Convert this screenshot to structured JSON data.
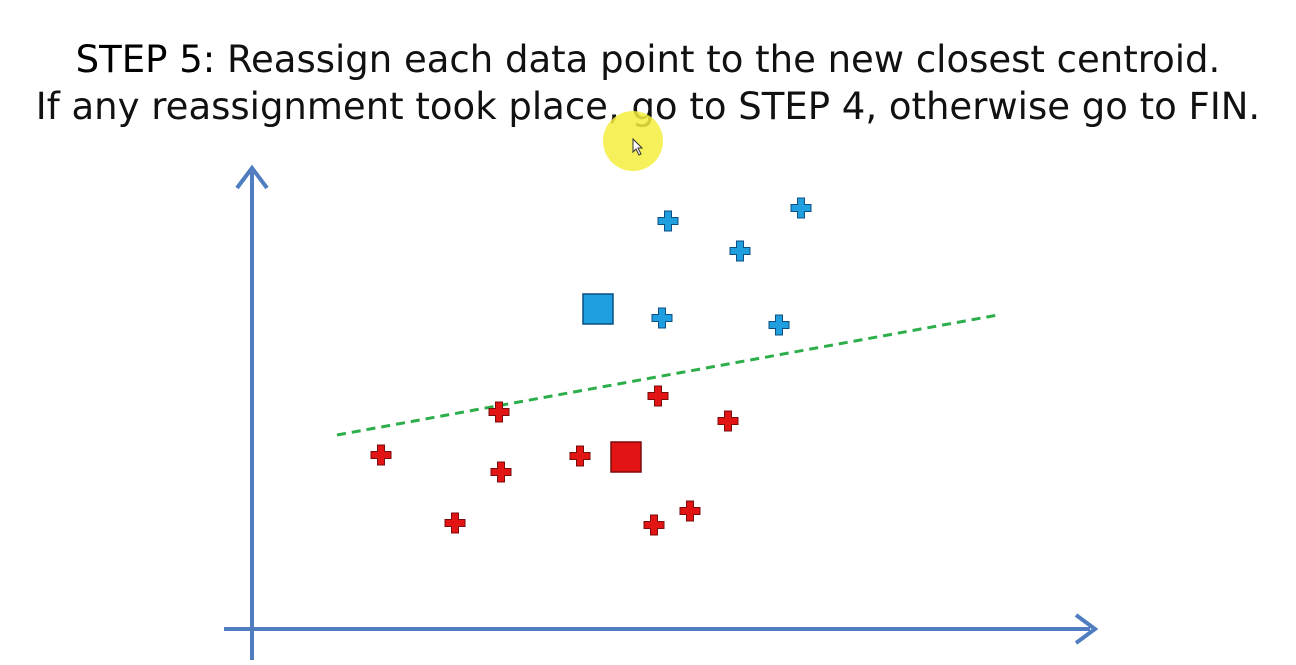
{
  "slide": {
    "line1": {
      "label": "STEP 5:",
      "text": " Reassign each data point to the new closest centroid."
    },
    "line2": "If any reassignment took place, go to STEP 4, otherwise go to FIN."
  },
  "colors": {
    "axis": "#4f7dc0",
    "cluster_blue": "#1f9ee0",
    "cluster_red": "#e31414",
    "divider": "#2cae4a",
    "cursor_highlight": "#f5ee3e"
  },
  "icons": {
    "data_point": "plus-marker",
    "centroid": "square-marker",
    "cursor": "mouse-pointer-icon"
  },
  "clusters": [
    {
      "name": "blue",
      "color": "#1f9ee0",
      "centroid": [
        598,
        309
      ],
      "points": [
        [
          668,
          221
        ],
        [
          801,
          208
        ],
        [
          740,
          251
        ],
        [
          662,
          318
        ],
        [
          779,
          325
        ]
      ]
    },
    {
      "name": "red",
      "color": "#e31414",
      "centroid": [
        626,
        457
      ],
      "points": [
        [
          499,
          412
        ],
        [
          658,
          396
        ],
        [
          728,
          421
        ],
        [
          381,
          455
        ],
        [
          580,
          456
        ],
        [
          501,
          472
        ],
        [
          455,
          523
        ],
        [
          654,
          525
        ],
        [
          690,
          511
        ]
      ]
    }
  ],
  "divider_line": {
    "from": [
      337,
      435
    ],
    "to": [
      998,
      315
    ],
    "style": "dashed"
  }
}
